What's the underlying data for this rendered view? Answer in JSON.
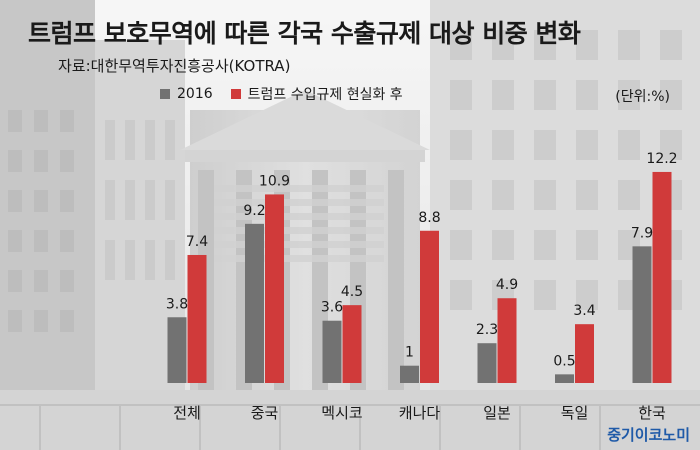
{
  "header": {
    "title": "트럼프 보호무역에 따른 각국 수출규제 대상 비중 변화",
    "source": "자료:대한무역투자진흥공사(KOTRA)",
    "unit": "(단위:%)"
  },
  "brand": {
    "logo_text": "중기이코노미"
  },
  "colors": {
    "series_2016": "#727272",
    "series_after": "#d03a3a",
    "logo": "#1f5aa8"
  },
  "chart_data": {
    "type": "bar",
    "title": "트럼프 보호무역에 따른 각국 수출규제 대상 비중 변화",
    "xlabel": "",
    "ylabel": "",
    "unit": "%",
    "ylim": [
      0,
      14
    ],
    "grid": false,
    "legend_position": "top-left",
    "categories": [
      "전체",
      "중국",
      "멕시코",
      "캐나다",
      "일본",
      "독일",
      "한국"
    ],
    "series": [
      {
        "name": "2016",
        "values": [
          3.8,
          9.2,
          3.6,
          1,
          2.3,
          0.5,
          7.9
        ]
      },
      {
        "name": "트럼프 수입규제 현실화 후",
        "values": [
          7.4,
          10.9,
          4.5,
          8.8,
          4.9,
          3.4,
          12.2
        ]
      }
    ]
  }
}
